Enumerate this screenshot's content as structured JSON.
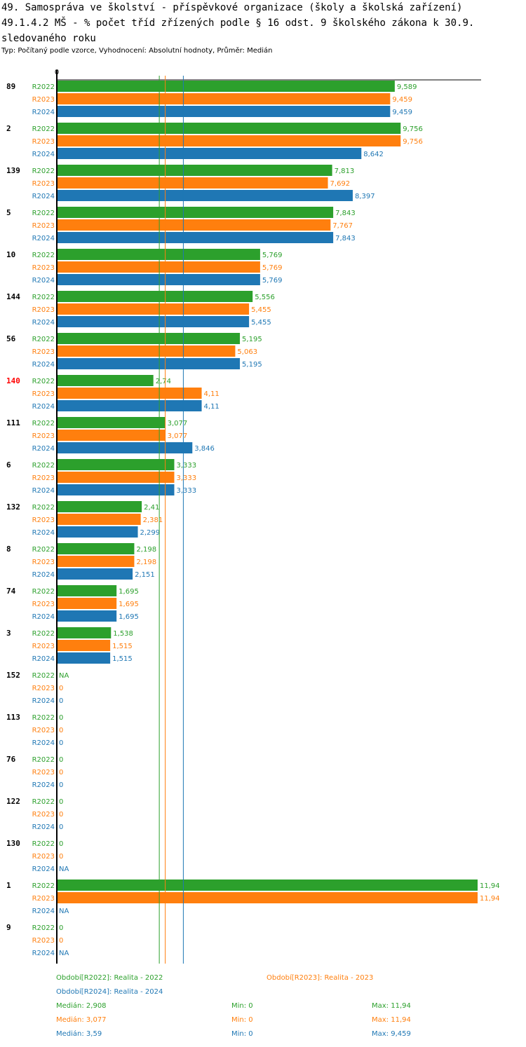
{
  "header": {
    "title_line1": "49. Samospráva ve školství - příspěvkové organizace (školy a školská zařízení)",
    "title_line2": "49.1.4.2 MŠ - % počet tříd zřízených podle § 16 odst. 9 školského zákona k 30.9. sledovaného roku",
    "subtitle": "Typ: Počítaný podle vzorce, Vyhodnocení: Absolutní hodnoty, Průměr: Medián"
  },
  "colors": {
    "R2022": "#2ca02c",
    "R2023": "#ff7f0e",
    "R2024": "#1f77b4",
    "highlight": "#ff0000",
    "axis": "#000000"
  },
  "chart_data": {
    "type": "bar",
    "orientation": "horizontal",
    "title": "49.1.4.2 MŠ - % počet tříd zřízených podle § 16 odst. 9 školského zákona k 30.9. sledovaného roku",
    "axis_zero_label": "0",
    "xlim": [
      0,
      11.94
    ],
    "highlight_category": "140",
    "series_names": [
      "R2022",
      "R2023",
      "R2024"
    ],
    "categories": [
      {
        "label": "89",
        "values": [
          9.589,
          9.459,
          9.459
        ],
        "labels": [
          "9,589",
          "9,459",
          "9,459"
        ]
      },
      {
        "label": "2",
        "values": [
          9.756,
          9.756,
          8.642
        ],
        "labels": [
          "9,756",
          "9,756",
          "8,642"
        ]
      },
      {
        "label": "139",
        "values": [
          7.813,
          7.692,
          8.397
        ],
        "labels": [
          "7,813",
          "7,692",
          "8,397"
        ]
      },
      {
        "label": "5",
        "values": [
          7.843,
          7.767,
          7.843
        ],
        "labels": [
          "7,843",
          "7,767",
          "7,843"
        ]
      },
      {
        "label": "10",
        "values": [
          5.769,
          5.769,
          5.769
        ],
        "labels": [
          "5,769",
          "5,769",
          "5,769"
        ]
      },
      {
        "label": "144",
        "values": [
          5.556,
          5.455,
          5.455
        ],
        "labels": [
          "5,556",
          "5,455",
          "5,455"
        ]
      },
      {
        "label": "56",
        "values": [
          5.195,
          5.063,
          5.195
        ],
        "labels": [
          "5,195",
          "5,063",
          "5,195"
        ]
      },
      {
        "label": "140",
        "values": [
          2.74,
          4.11,
          4.11
        ],
        "labels": [
          "2,74",
          "4,11",
          "4,11"
        ]
      },
      {
        "label": "111",
        "values": [
          3.077,
          3.077,
          3.846
        ],
        "labels": [
          "3,077",
          "3,077",
          "3,846"
        ]
      },
      {
        "label": "6",
        "values": [
          3.333,
          3.333,
          3.333
        ],
        "labels": [
          "3,333",
          "3,333",
          "3,333"
        ]
      },
      {
        "label": "132",
        "values": [
          2.41,
          2.381,
          2.299
        ],
        "labels": [
          "2,41",
          "2,381",
          "2,299"
        ]
      },
      {
        "label": "8",
        "values": [
          2.198,
          2.198,
          2.151
        ],
        "labels": [
          "2,198",
          "2,198",
          "2,151"
        ]
      },
      {
        "label": "74",
        "values": [
          1.695,
          1.695,
          1.695
        ],
        "labels": [
          "1,695",
          "1,695",
          "1,695"
        ]
      },
      {
        "label": "3",
        "values": [
          1.538,
          1.515,
          1.515
        ],
        "labels": [
          "1,538",
          "1,515",
          "1,515"
        ]
      },
      {
        "label": "152",
        "values": [
          null,
          0,
          0
        ],
        "labels": [
          "NA",
          "0",
          "0"
        ]
      },
      {
        "label": "113",
        "values": [
          0,
          0,
          0
        ],
        "labels": [
          "0",
          "0",
          "0"
        ]
      },
      {
        "label": "76",
        "values": [
          0,
          0,
          0
        ],
        "labels": [
          "0",
          "0",
          "0"
        ]
      },
      {
        "label": "122",
        "values": [
          0,
          0,
          0
        ],
        "labels": [
          "0",
          "0",
          "0"
        ]
      },
      {
        "label": "130",
        "values": [
          0,
          0,
          null
        ],
        "labels": [
          "0",
          "0",
          "NA"
        ]
      },
      {
        "label": "1",
        "values": [
          11.94,
          11.94,
          null
        ],
        "labels": [
          "11,94",
          "11,94",
          "NA"
        ]
      },
      {
        "label": "9",
        "values": [
          0,
          0,
          null
        ],
        "labels": [
          "0",
          "0",
          "NA"
        ]
      }
    ],
    "median_lines": [
      {
        "series": "R2022",
        "value": 2.908
      },
      {
        "series": "R2023",
        "value": 3.077
      },
      {
        "series": "R2024",
        "value": 3.59
      }
    ]
  },
  "legend": {
    "r2022": "Období[R2022]: Realita - 2022",
    "r2023": "Období[R2023]: Realita - 2023",
    "r2024": "Období[R2024]: Realita - 2024"
  },
  "stats": [
    {
      "median": "Medián: 2,908",
      "min": "Min: 0",
      "max": "Max: 11,94"
    },
    {
      "median": "Medián: 3,077",
      "min": "Min: 0",
      "max": "Max: 11,94"
    },
    {
      "median": "Medián: 3,59",
      "min": "Min: 0",
      "max": "Max: 9,459"
    }
  ]
}
